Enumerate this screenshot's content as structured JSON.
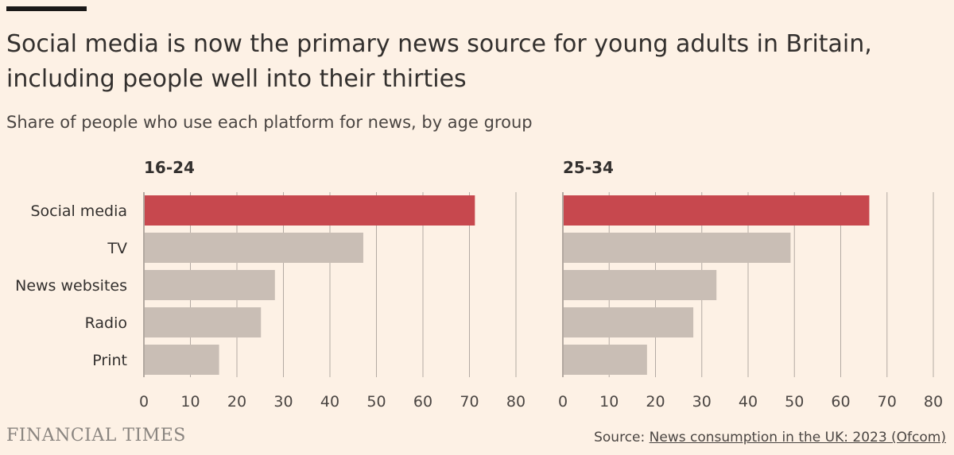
{
  "title": "Social media is now the primary news source for young adults in Britain, including people well into their thirties",
  "subtitle": "Share of people who use each platform for news, by age group",
  "chart_data": [
    {
      "type": "bar",
      "orientation": "horizontal",
      "title": "16-24",
      "categories": [
        "Social media",
        "TV",
        "News websites",
        "Radio",
        "Print"
      ],
      "values": [
        71,
        47,
        28,
        25,
        16
      ],
      "xlim": [
        0,
        80
      ],
      "xticks": [
        0,
        10,
        20,
        30,
        40,
        50,
        60,
        70,
        80
      ],
      "highlight": "Social media",
      "grid": true
    },
    {
      "type": "bar",
      "orientation": "horizontal",
      "title": "25-34",
      "categories": [
        "Social media",
        "TV",
        "News websites",
        "Radio",
        "Print"
      ],
      "values": [
        66,
        49,
        33,
        28,
        18
      ],
      "xlim": [
        0,
        80
      ],
      "xticks": [
        0,
        10,
        20,
        30,
        40,
        50,
        60,
        70,
        80
      ],
      "highlight": "Social media",
      "grid": true
    }
  ],
  "colors": {
    "highlight": "#c7484e",
    "other": "#c9beb5",
    "grid": "#b3aaa3",
    "background": "#fdf1e5"
  },
  "footer": {
    "logo": "FINANCIAL TIMES",
    "source_label": "Source: ",
    "source_link": "News consumption in the UK: 2023 (Ofcom)"
  }
}
